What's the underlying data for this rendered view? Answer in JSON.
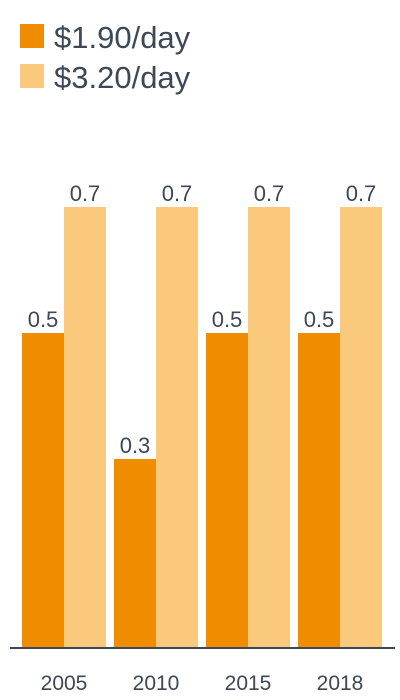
{
  "chart_data": {
    "type": "bar",
    "title": "",
    "xlabel": "",
    "ylabel": "",
    "categories": [
      "2005",
      "2010",
      "2015",
      "2018"
    ],
    "series": [
      {
        "name": "$1.90/day",
        "values": [
          0.5,
          0.3,
          0.5,
          0.5
        ],
        "color": "#f08c00"
      },
      {
        "name": "$3.20/day",
        "values": [
          0.7,
          0.7,
          0.7,
          0.7
        ],
        "color": "#fbc97c"
      }
    ],
    "ylim": [
      0,
      1.05
    ],
    "grid": false,
    "legend_position": "top-left",
    "axis_color": "#3c4858"
  }
}
